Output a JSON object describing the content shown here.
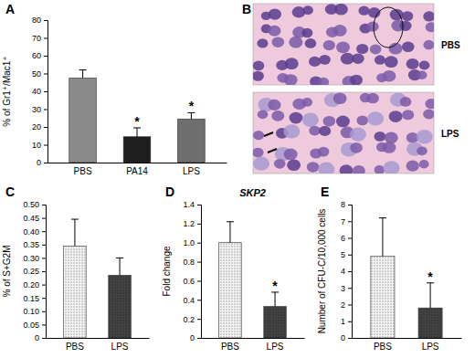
{
  "chart_data": [
    {
      "type": "bar",
      "panel": "A",
      "y_label": "% of Gr1⁺/Mac1⁺",
      "categories": [
        "PBS",
        "PA14",
        "LPS"
      ],
      "values": [
        47.5,
        14.5,
        24.5
      ],
      "errors": [
        4.5,
        5,
        3.5
      ],
      "colors": [
        "#8a8a8a",
        "#1e1e1e",
        "#6e6e6e"
      ],
      "ylim": [
        0,
        80
      ],
      "yticks": [
        0,
        10,
        20,
        30,
        40,
        50,
        60,
        70,
        80
      ],
      "annotations": [
        {
          "category": "PA14",
          "text": "*"
        },
        {
          "category": "LPS",
          "text": "*"
        }
      ]
    },
    {
      "type": "image",
      "panel": "B",
      "labels": [
        "PBS",
        "LPS"
      ]
    },
    {
      "type": "bar",
      "panel": "C",
      "y_label": "% of S+G2M",
      "categories": [
        "PBS",
        "LPS"
      ],
      "values": [
        0.345,
        0.235
      ],
      "errors": [
        0.1,
        0.065
      ],
      "colors": [
        "#d4d4d4",
        "#3a3a3a"
      ],
      "ylim": [
        0,
        0.5
      ],
      "yticks": [
        0,
        0.05,
        {
          "value": 0.1,
          "label": "0.10"
        },
        0.15,
        {
          "value": 0.2,
          "label": "0.20"
        },
        0.25,
        {
          "value": 0.3,
          "label": "0.30"
        },
        0.35,
        {
          "value": 0.4,
          "label": "0.40"
        },
        0.45,
        {
          "value": 0.5,
          "label": "0.50"
        }
      ]
    },
    {
      "type": "bar",
      "panel": "D",
      "title": "SKP2",
      "y_label": "Fold change",
      "categories": [
        "PBS",
        "LPS"
      ],
      "values": [
        1.0,
        0.33
      ],
      "errors": [
        0.22,
        0.15
      ],
      "colors": [
        "#d4d4d4",
        "#3a3a3a"
      ],
      "ylim": [
        0,
        1.4
      ],
      "yticks": [
        0,
        0.2,
        0.4,
        0.6,
        0.8,
        {
          "value": 1.0,
          "label": "1.0"
        },
        1.2,
        1.4
      ],
      "annotations": [
        {
          "category": "LPS",
          "text": "*"
        }
      ]
    },
    {
      "type": "bar",
      "panel": "E",
      "y_label": "Number of CFU-C/10,000 cells",
      "categories": [
        "PBS",
        "LPS"
      ],
      "values": [
        4.9,
        1.8
      ],
      "errors": [
        2.3,
        1.5
      ],
      "colors": [
        "#d4d4d4",
        "#3a3a3a"
      ],
      "ylim": [
        0,
        8
      ],
      "yticks": [
        0,
        1,
        2,
        3,
        4,
        5,
        6,
        7,
        8
      ],
      "annotations": [
        {
          "category": "LPS",
          "text": "*"
        }
      ]
    }
  ]
}
